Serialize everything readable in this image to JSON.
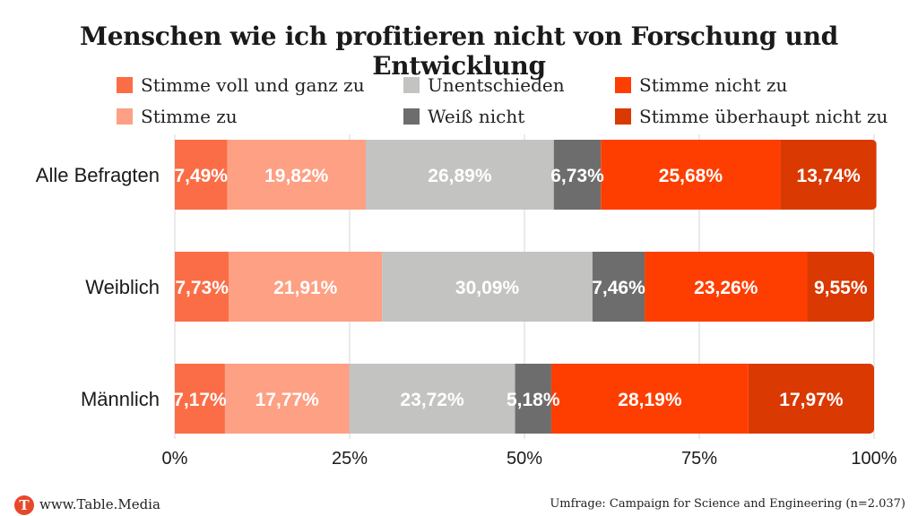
{
  "colors": {
    "stimme_voll": "#fb6d46",
    "stimme_zu": "#fda083",
    "unentschieden": "#c3c3c1",
    "weiss_nicht": "#6d6d6d",
    "stimme_nicht": "#fe3e00",
    "ueberhaupt_nicht": "#da3902"
  },
  "chart_data": {
    "type": "bar",
    "orientation": "horizontal",
    "stacked": true,
    "title": "Menschen wie ich profitieren nicht von Forschung und Entwicklung",
    "categories": [
      "Alle Befragten",
      "Weiblich",
      "Männlich"
    ],
    "series": [
      {
        "name": "Stimme voll und ganz zu",
        "color": "#fb6d46",
        "values": [
          7.49,
          7.73,
          7.17
        ],
        "labels": [
          "7,49%",
          "7,73%",
          "7,17%"
        ]
      },
      {
        "name": "Stimme zu",
        "color": "#fda083",
        "values": [
          19.82,
          21.91,
          17.77
        ],
        "labels": [
          "19,82%",
          "21,91%",
          "17,77%"
        ]
      },
      {
        "name": "Unentschieden",
        "color": "#c3c3c1",
        "values": [
          26.89,
          30.09,
          23.72
        ],
        "labels": [
          "26,89%",
          "30,09%",
          "23,72%"
        ]
      },
      {
        "name": "Weiß nicht",
        "color": "#6d6d6d",
        "values": [
          6.73,
          7.46,
          5.18
        ],
        "labels": [
          "6,73%",
          "7,46%",
          "5,18%"
        ]
      },
      {
        "name": "Stimme nicht zu",
        "color": "#fe3e00",
        "values": [
          25.68,
          23.26,
          28.19
        ],
        "labels": [
          "25,68%",
          "23,26%",
          "28,19%"
        ]
      },
      {
        "name": "Stimme überhaupt nicht zu",
        "color": "#da3902",
        "values": [
          13.74,
          9.55,
          17.97
        ],
        "labels": [
          "13,74%",
          "9,55%",
          "17,97%"
        ]
      }
    ],
    "xlim": [
      0,
      100
    ],
    "xticks": [
      0,
      25,
      50,
      75,
      100
    ],
    "xtick_labels": [
      "0%",
      "25%",
      "50%",
      "75%",
      "100%"
    ],
    "grid": true,
    "legend_placement": "top"
  },
  "footer": {
    "logo_letter": "T",
    "site": "www.Table.Media",
    "source": "Umfrage: Campaign for Science and Engineering  (n=2.037)"
  }
}
